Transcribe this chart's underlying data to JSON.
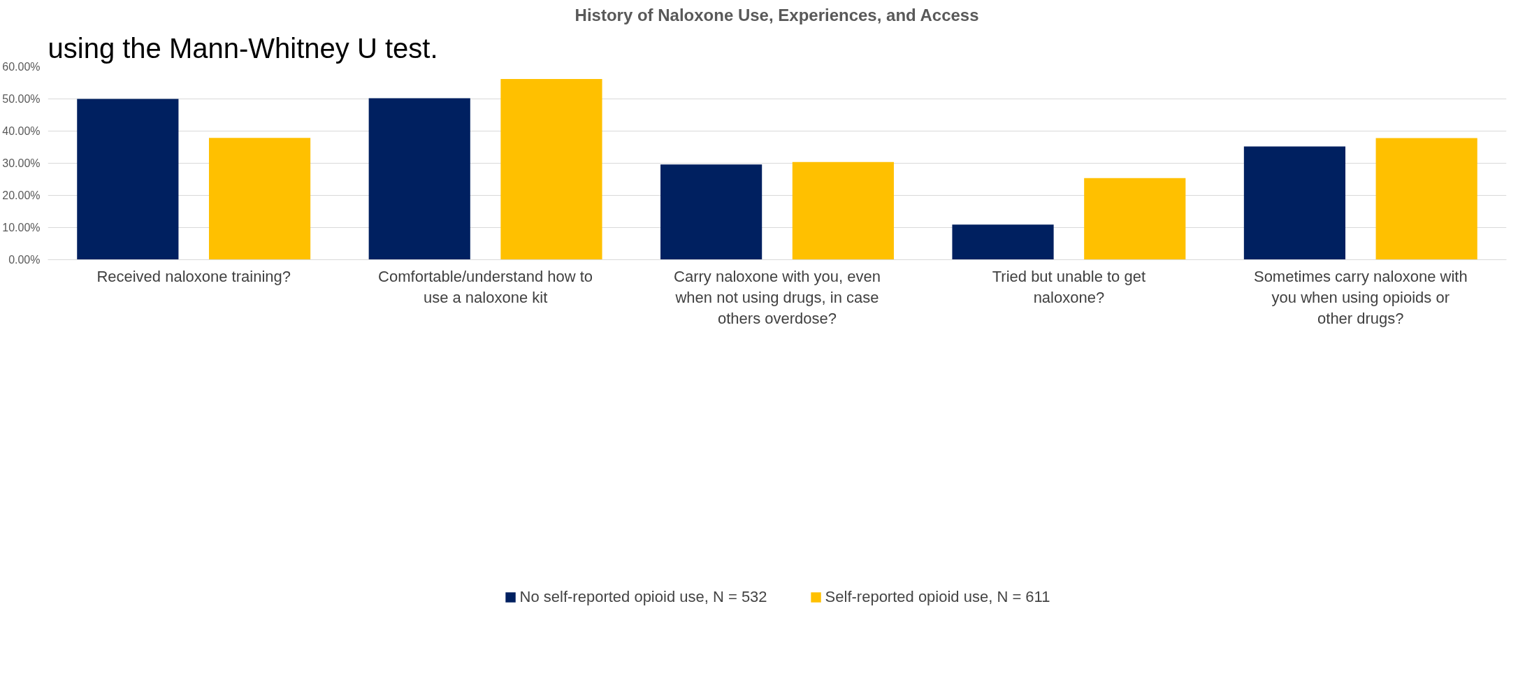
{
  "chart_data": {
    "type": "bar",
    "title": "History of Naloxone Use, Experiences, and Access",
    "annotations": [
      "using the Mann-Whitney U test."
    ],
    "categories": [
      "Received naloxone training?",
      "Comfortable/understand how to use a naloxone kit",
      "Carry naloxone with you, even when not using drugs, in case others overdose?",
      "Tried but unable to get naloxone?",
      "Sometimes carry naloxone with you when using opioids or other drugs?"
    ],
    "series": [
      {
        "name": "No self-reported opioid use, N = 532",
        "color": "#002060",
        "values": [
          50.0,
          50.2,
          29.6,
          10.9,
          35.2
        ]
      },
      {
        "name": "Self-reported opioid use, N = 611",
        "color": "#ffc000",
        "values": [
          37.9,
          56.2,
          30.4,
          25.4,
          37.8
        ]
      }
    ],
    "ylim": [
      0,
      60
    ],
    "yticks": [
      {
        "value": 0,
        "label": "0.00%"
      },
      {
        "value": 10,
        "label": "10.00%"
      },
      {
        "value": 20,
        "label": "20.00%"
      },
      {
        "value": 30,
        "label": "30.00%"
      },
      {
        "value": 40,
        "label": "40.00%"
      },
      {
        "value": 50,
        "label": "50.00%"
      },
      {
        "value": 60,
        "label": "60.00%"
      }
    ],
    "grid": "y",
    "legend": "bottom"
  }
}
